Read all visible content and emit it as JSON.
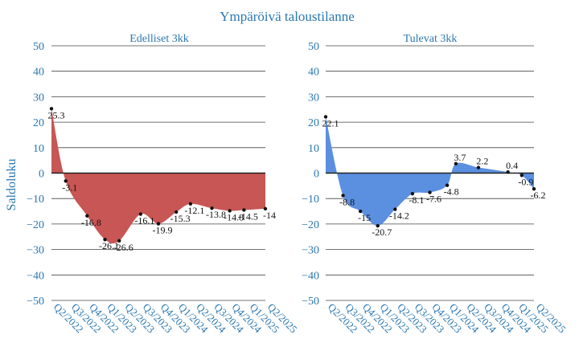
{
  "chart_data": {
    "type": "area",
    "title": "Ympäröivä taloustilanne",
    "ylabel": "Saldoluku",
    "ylim": [
      -50,
      50
    ],
    "yticks": [
      50,
      40,
      30,
      20,
      10,
      0,
      -10,
      -20,
      -30,
      -40,
      -50
    ],
    "grid": true,
    "categories": [
      "Q2/2022",
      "Q3/2022",
      "Q4/2022",
      "Q1/2023",
      "Q2/2023",
      "Q3/2023",
      "Q4/2023",
      "Q1/2024",
      "Q2/2024",
      "Q3/2024",
      "Q4/2024",
      "Q1/2025",
      "Q2/2025"
    ],
    "panels": [
      {
        "title": "Edelliset 3kk",
        "color": "#c85655",
        "x": [
          0,
          0.8,
          2,
          3,
          3.8,
          5,
          6,
          7,
          7.8,
          9,
          10,
          10.8,
          12
        ],
        "values": [
          25.3,
          -3.1,
          -16.8,
          -26.1,
          -26.6,
          -16.1,
          -19.9,
          -15.3,
          -12.1,
          -13.8,
          -14.8,
          -14.5,
          -14.0
        ],
        "labels": [
          "25.3",
          "-3.1",
          "-16.8",
          "-26.1",
          "-26.6",
          "-16.1",
          "-19.9",
          "-15.3",
          "-12.1",
          "-13.8",
          "-14.8",
          "-14.5",
          "-14"
        ]
      },
      {
        "title": "Tulevat 3kk",
        "color": "#5b8fe0",
        "x": [
          0,
          1,
          2,
          3,
          4,
          5,
          6,
          7,
          7.5,
          8.8,
          10.5,
          11.3,
          12
        ],
        "values": [
          22.1,
          -8.8,
          -15.0,
          -20.7,
          -14.2,
          -8.1,
          -7.6,
          -4.8,
          3.7,
          2.2,
          0.4,
          -0.9,
          -6.2
        ],
        "labels": [
          "22.1",
          "-8.8",
          "-15",
          "-20.7",
          "-14.2",
          "-8.1",
          "-7.6",
          "-4.8",
          "3.7",
          "2.2",
          "0.4",
          "-0.9",
          "-6.2"
        ]
      }
    ]
  }
}
